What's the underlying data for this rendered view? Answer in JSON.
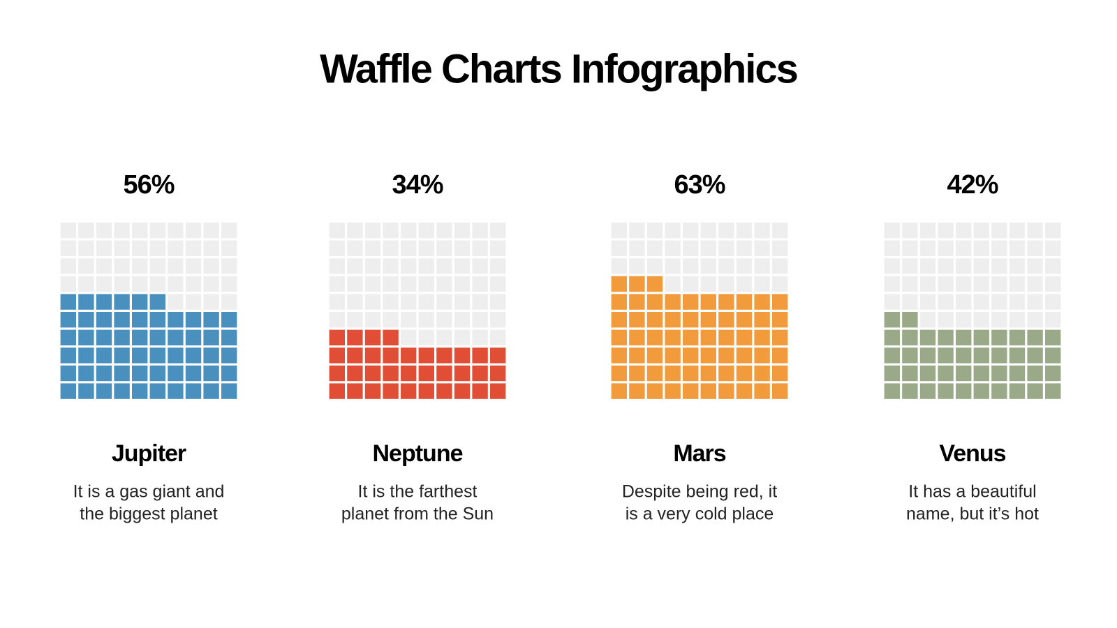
{
  "title": "Waffle Charts Infographics",
  "chart_data": [
    {
      "type": "waffle",
      "title": "Jupiter",
      "description": [
        "It is a gas giant and",
        "the biggest planet"
      ],
      "values": [
        56
      ],
      "value_labels": [
        "56%"
      ],
      "color": "#4a90bf",
      "empty_color": "#eeeeee"
    },
    {
      "type": "waffle",
      "title": "Neptune",
      "description": [
        "It is the farthest",
        "planet from the Sun"
      ],
      "values": [
        34
      ],
      "value_labels": [
        "34%"
      ],
      "color": "#e04e35",
      "empty_color": "#eeeeee"
    },
    {
      "type": "waffle",
      "title": "Mars",
      "description": [
        "Despite being red, it",
        "is a very cold place"
      ],
      "values": [
        63
      ],
      "value_labels": [
        "63%"
      ],
      "color": "#f29b3c",
      "empty_color": "#eeeeee"
    },
    {
      "type": "waffle",
      "title": "Venus",
      "description": [
        "It has a beautiful",
        "name, but it’s hot"
      ],
      "values": [
        42
      ],
      "value_labels": [
        "42%"
      ],
      "color": "#9aaa88",
      "empty_color": "#eeeeee"
    }
  ]
}
